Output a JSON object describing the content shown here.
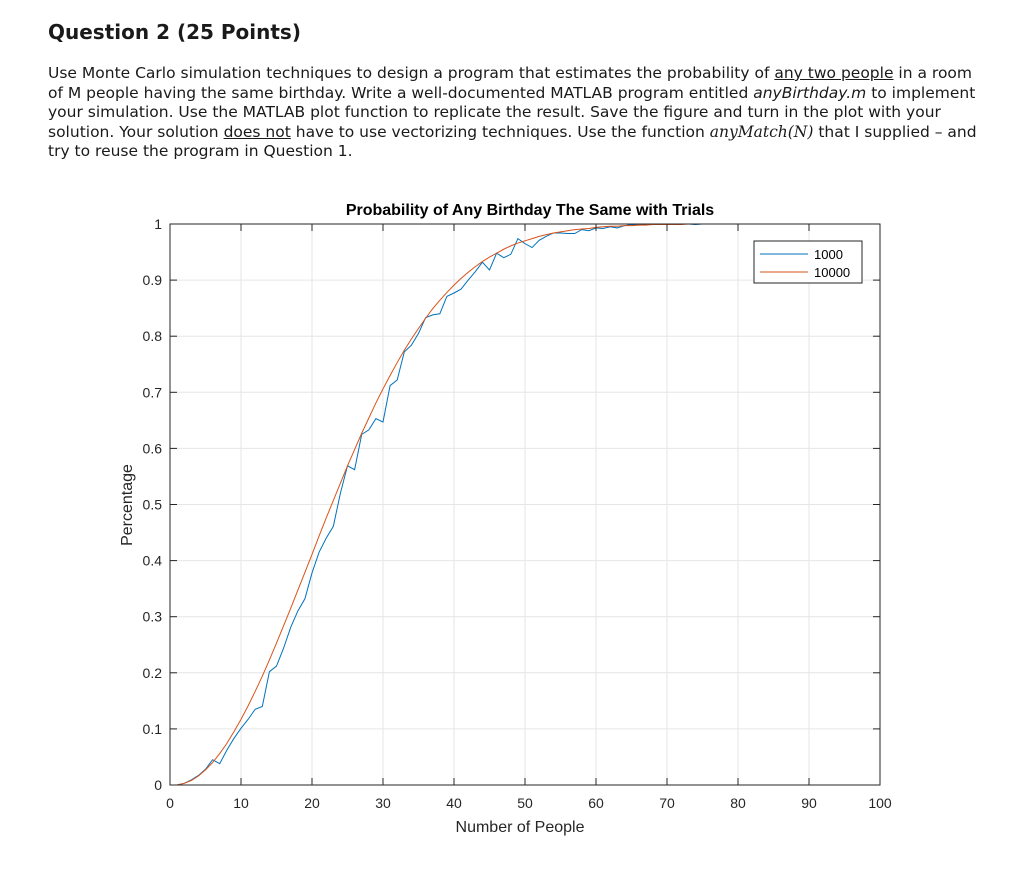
{
  "question": {
    "title": "Question 2 (25 Points)",
    "segments": [
      {
        "t": "Use Monte Carlo simulation techniques to design a program that estimates the probability of "
      },
      {
        "t": "any two people",
        "u": true
      },
      {
        "t": " in a room of M people having the same birthday.  Write a well-documented MATLAB program entitled "
      },
      {
        "t": "anyBirthday.m",
        "i": true
      },
      {
        "t": " to implement your simulation.   Use the MATLAB plot function to replicate the result.  Save the figure and turn in the plot with your solution.  Your solution "
      },
      {
        "t": "does not",
        "u": true
      },
      {
        "t": " have to use vectorizing techniques.  Use the function "
      },
      {
        "t": "anyMatch(N)",
        "m": true
      },
      {
        "t": " that I supplied – and try to reuse the program in Question 1."
      }
    ]
  },
  "chart_data": {
    "type": "line",
    "title": "Probability of Any Birthday The Same with Trials",
    "xlabel": "Number of People",
    "ylabel": "Percentage",
    "xlim": [
      0,
      100
    ],
    "ylim": [
      0,
      1
    ],
    "xticks": [
      "0",
      "10",
      "20",
      "30",
      "40",
      "50",
      "60",
      "70",
      "80",
      "90",
      "100"
    ],
    "yticks": [
      "0",
      "0.1",
      "0.2",
      "0.3",
      "0.4",
      "0.5",
      "0.6",
      "0.7",
      "0.8",
      "0.9",
      "1"
    ],
    "grid": true,
    "legend_position": "top-right",
    "x": [
      1,
      2,
      3,
      4,
      5,
      6,
      7,
      8,
      9,
      10,
      11,
      12,
      13,
      14,
      15,
      16,
      17,
      18,
      19,
      20,
      21,
      22,
      23,
      24,
      25,
      26,
      27,
      28,
      29,
      30,
      31,
      32,
      33,
      34,
      35,
      36,
      37,
      38,
      39,
      40,
      41,
      42,
      43,
      44,
      45,
      46,
      47,
      48,
      49,
      50,
      51,
      52,
      53,
      54,
      55,
      56,
      57,
      58,
      59,
      60,
      61,
      62,
      63,
      64,
      65,
      66,
      67,
      68,
      69,
      70,
      71,
      72,
      73,
      74,
      75,
      76,
      77,
      78,
      79,
      80,
      81,
      82,
      83,
      84,
      85,
      86,
      87,
      88,
      89,
      90,
      91,
      92,
      93,
      94,
      95,
      96,
      97,
      98,
      99,
      100
    ],
    "series": [
      {
        "name": "1000",
        "color": "#0072BD",
        "values": [
          0,
          0.003,
          0.009,
          0.017,
          0.028,
          0.045,
          0.038,
          0.062,
          0.083,
          0.101,
          0.117,
          0.135,
          0.14,
          0.202,
          0.212,
          0.244,
          0.281,
          0.31,
          0.332,
          0.378,
          0.415,
          0.44,
          0.461,
          0.52,
          0.569,
          0.562,
          0.625,
          0.633,
          0.653,
          0.647,
          0.712,
          0.722,
          0.772,
          0.784,
          0.805,
          0.833,
          0.838,
          0.84,
          0.871,
          0.877,
          0.884,
          0.9,
          0.915,
          0.932,
          0.918,
          0.948,
          0.94,
          0.946,
          0.974,
          0.965,
          0.958,
          0.971,
          0.978,
          0.984,
          0.984,
          0.983,
          0.983,
          0.99,
          0.988,
          0.993,
          0.992,
          0.995,
          0.993,
          0.997,
          0.999,
          0.998,
          0.999,
          0.999,
          1,
          1,
          1,
          1,
          1,
          0.999,
          1,
          1,
          1,
          1,
          1,
          1,
          1,
          1,
          1,
          1,
          1,
          1,
          1,
          1,
          1,
          1,
          1,
          1,
          1,
          1,
          1,
          1,
          1,
          1,
          1,
          1
        ]
      },
      {
        "name": "10000",
        "color": "#D95319",
        "values": [
          0,
          0.003,
          0.008,
          0.016,
          0.027,
          0.04,
          0.056,
          0.074,
          0.095,
          0.117,
          0.141,
          0.167,
          0.194,
          0.223,
          0.253,
          0.284,
          0.315,
          0.347,
          0.379,
          0.411,
          0.444,
          0.476,
          0.507,
          0.538,
          0.569,
          0.598,
          0.627,
          0.654,
          0.681,
          0.706,
          0.73,
          0.753,
          0.775,
          0.795,
          0.814,
          0.832,
          0.849,
          0.864,
          0.878,
          0.891,
          0.903,
          0.914,
          0.924,
          0.933,
          0.941,
          0.948,
          0.955,
          0.961,
          0.966,
          0.97,
          0.974,
          0.978,
          0.981,
          0.984,
          0.986,
          0.988,
          0.99,
          0.991,
          0.992,
          0.994,
          0.995,
          0.996,
          0.996,
          0.997,
          0.997,
          0.998,
          0.998,
          0.999,
          0.999,
          0.999,
          0.999,
          0.999,
          1,
          1,
          1,
          1,
          1,
          1,
          1,
          1,
          1,
          1,
          1,
          1,
          1,
          1,
          1,
          1,
          1,
          1,
          1,
          1,
          1,
          1,
          1,
          1,
          1,
          1,
          1,
          1
        ]
      }
    ]
  }
}
